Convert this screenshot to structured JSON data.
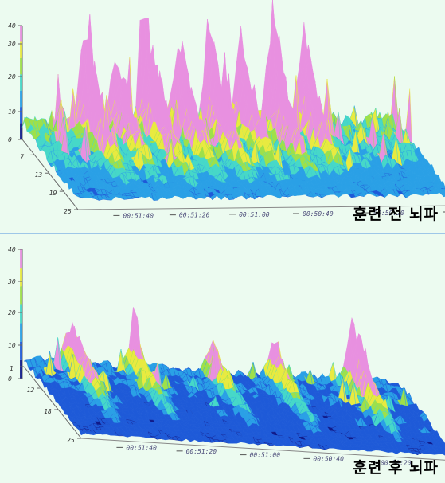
{
  "chart_data": [
    {
      "type": "surface",
      "title": "훈련 전 뇌파",
      "z_ticks": [
        "0",
        "10",
        "20",
        "30",
        "40"
      ],
      "zlim": [
        0,
        40
      ],
      "y_ticks": [
        "1",
        "7",
        "13",
        "19",
        "25"
      ],
      "x_ticks": [
        "00:51:40",
        "00:51:20",
        "00:51:00",
        "00:50:40",
        "00:50:20",
        "00:5"
      ],
      "colors": [
        "#101a8a",
        "#1e5ad8",
        "#2aa0e6",
        "#46d8c8",
        "#9ee04a",
        "#e8ea40",
        "#e890e0"
      ],
      "ridge_peaks": [
        4,
        6,
        8,
        10,
        12,
        14,
        16,
        18
      ],
      "ridge_heights": [
        42,
        30,
        44,
        38,
        46,
        34,
        44,
        40
      ]
    },
    {
      "type": "surface",
      "title": "훈련 후 뇌파",
      "z_ticks": [
        "0",
        "10",
        "20",
        "30",
        "40"
      ],
      "zlim": [
        0,
        40
      ],
      "y_ticks": [
        "1",
        "12",
        "18",
        "25"
      ],
      "x_ticks": [
        "00:51:40",
        "00:51:20",
        "00:51:00",
        "00:50:40",
        "00:50:20",
        "00:5"
      ],
      "colors": [
        "#101a8a",
        "#1e5ad8",
        "#2aa0e6",
        "#46d8c8",
        "#9ee04a",
        "#e8ea40",
        "#e890e0"
      ],
      "ridge_peaks": [
        3,
        7,
        12,
        16,
        21
      ],
      "ridge_heights": [
        24,
        18,
        16,
        18,
        33
      ]
    }
  ],
  "labels": {
    "before": "훈련 전 뇌파",
    "after": "훈련 후 뇌파"
  }
}
